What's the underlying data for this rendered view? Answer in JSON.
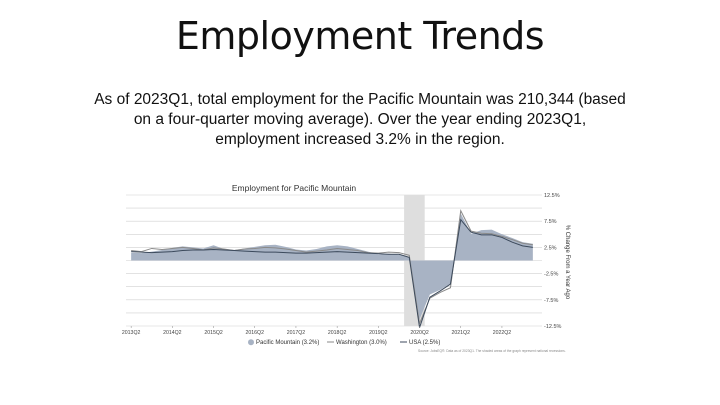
{
  "slide": {
    "title": "Employment Trends",
    "body": "As of 2023Q1, total employment for the Pacific Mountain was 210,344 (based on a four-quarter moving average). Over the year ending 2023Q1, employment increased 3.2% in the region."
  },
  "colors": {
    "area_fill": "#a8b3c4",
    "washington_line": "#8a8a8a",
    "usa_line": "#3c4a5c",
    "recession_band": "#dedede",
    "grid": "#d0d0d0"
  },
  "chart_data": {
    "type": "area",
    "title": "Employment for Pacific Mountain",
    "ylabel": "% Change From a Year Ago",
    "ylim": [
      -12.5,
      12.5
    ],
    "y_ticks": [
      "12.5%",
      "7.5%",
      "2.5%",
      "-2.5%",
      "-7.5%",
      "-12.5%"
    ],
    "x_tick_labels": [
      "2013Q2",
      "2014Q2",
      "2015Q2",
      "2016Q2",
      "2017Q2",
      "2018Q2",
      "2019Q2",
      "2020Q2",
      "2021Q2",
      "2022Q2"
    ],
    "recession_quarters": [
      "2020Q1",
      "2020Q2"
    ],
    "quarters": [
      "2013Q2",
      "2013Q3",
      "2013Q4",
      "2014Q1",
      "2014Q2",
      "2014Q3",
      "2014Q4",
      "2015Q1",
      "2015Q2",
      "2015Q3",
      "2015Q4",
      "2016Q1",
      "2016Q2",
      "2016Q3",
      "2016Q4",
      "2017Q1",
      "2017Q2",
      "2017Q3",
      "2017Q4",
      "2018Q1",
      "2018Q2",
      "2018Q3",
      "2018Q4",
      "2019Q1",
      "2019Q2",
      "2019Q3",
      "2019Q4",
      "2020Q1",
      "2020Q2",
      "2020Q3",
      "2020Q4",
      "2021Q1",
      "2021Q2",
      "2021Q3",
      "2021Q4",
      "2022Q1",
      "2022Q2",
      "2022Q3",
      "2022Q4",
      "2023Q1"
    ],
    "series": [
      {
        "name": "Pacific Mountain (3.2%)",
        "style": "area",
        "values": [
          1.5,
          1.4,
          1.7,
          2.0,
          2.4,
          2.7,
          2.5,
          2.3,
          2.9,
          2.2,
          2.0,
          2.3,
          2.6,
          2.9,
          3.0,
          2.6,
          2.1,
          1.9,
          2.2,
          2.7,
          2.9,
          2.7,
          2.2,
          1.7,
          1.2,
          1.3,
          1.1,
          0.5,
          -11.2,
          -6.5,
          -5.6,
          -4.4,
          9.0,
          5.1,
          5.8,
          5.9,
          5.0,
          4.3,
          3.5,
          3.2
        ]
      },
      {
        "name": "Washington (3.0%)",
        "style": "line",
        "values": [
          1.9,
          1.7,
          2.3,
          2.1,
          2.3,
          2.5,
          2.3,
          2.0,
          2.4,
          2.2,
          1.9,
          2.2,
          2.3,
          2.5,
          2.4,
          2.2,
          1.9,
          1.6,
          1.8,
          2.0,
          2.3,
          2.1,
          1.9,
          1.5,
          1.4,
          1.6,
          1.5,
          1.0,
          -12.0,
          -7.2,
          -6.1,
          -5.2,
          9.5,
          5.6,
          5.2,
          5.1,
          4.6,
          4.0,
          3.3,
          3.0
        ]
      },
      {
        "name": "USA (2.5%)",
        "style": "line",
        "values": [
          1.7,
          1.6,
          1.5,
          1.6,
          1.7,
          1.9,
          2.0,
          2.0,
          2.1,
          2.0,
          1.9,
          1.8,
          1.7,
          1.6,
          1.6,
          1.5,
          1.4,
          1.4,
          1.5,
          1.6,
          1.7,
          1.6,
          1.5,
          1.4,
          1.3,
          1.2,
          1.2,
          0.6,
          -12.8,
          -7.0,
          -5.8,
          -4.5,
          7.8,
          5.4,
          4.9,
          4.9,
          4.4,
          3.5,
          2.8,
          2.5
        ]
      }
    ],
    "source_note": "Source: JobsEQ®. Data as of 2023Q1. The shaded areas of the graph represent national recessions."
  }
}
